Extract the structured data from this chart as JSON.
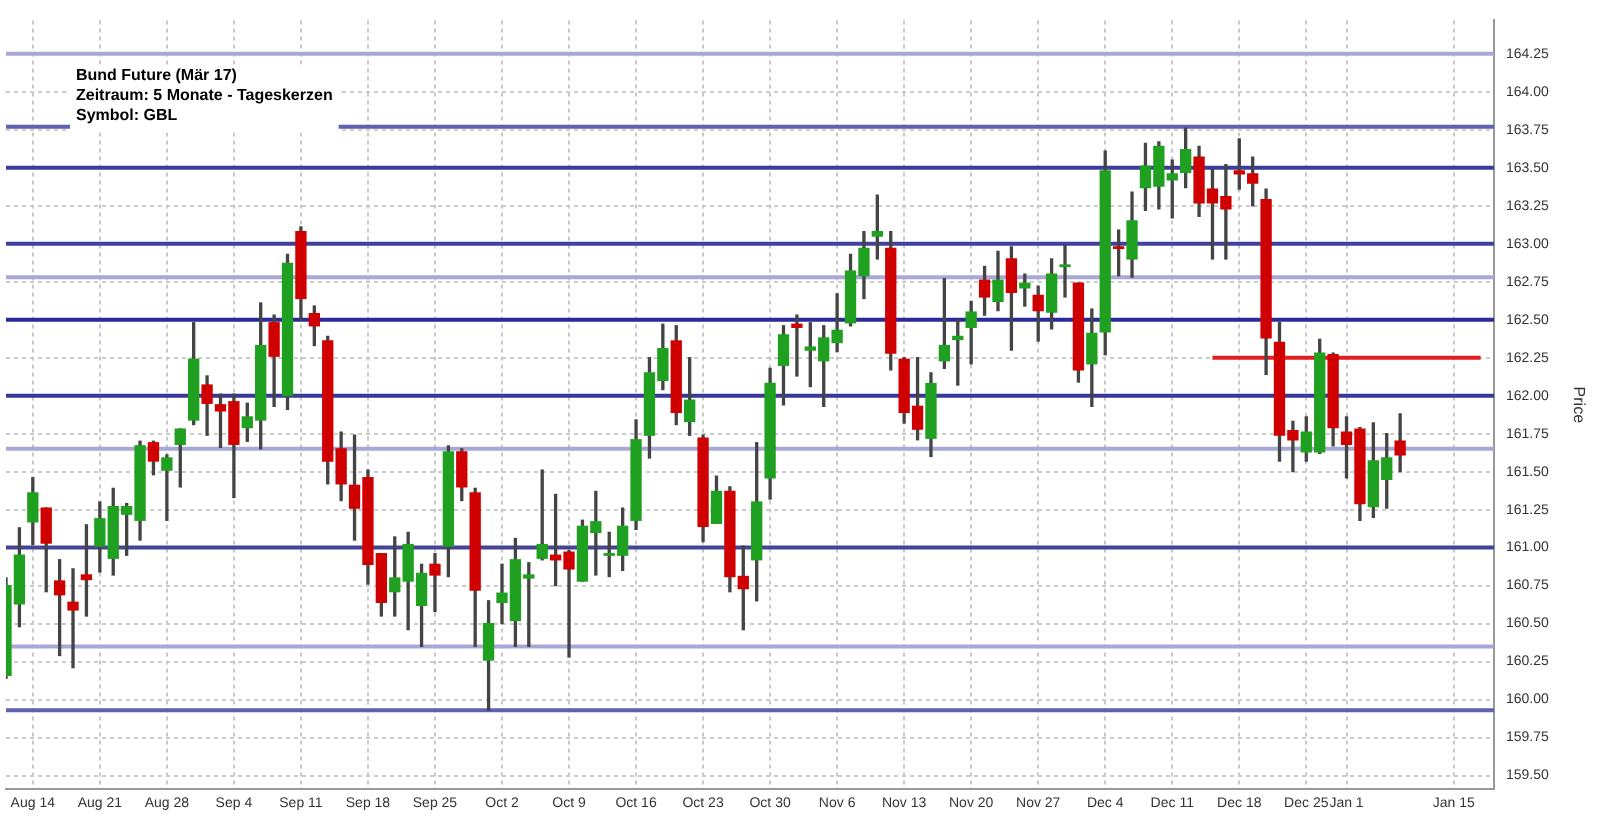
{
  "chart_data": {
    "type": "candlestick",
    "title": "Bund Future (Mär 17)",
    "subtitle": "Zeitraum: 5 Monate - Tageskerzen",
    "annotations": [
      "Symbol: GBL"
    ],
    "ylabel": "Price",
    "categories": [
      null,
      null,
      "Aug 14",
      null,
      null,
      null,
      null,
      "Aug 21",
      null,
      null,
      null,
      null,
      "Aug 28",
      null,
      null,
      null,
      null,
      "Sep 4",
      null,
      null,
      null,
      null,
      "Sep 11",
      null,
      null,
      null,
      null,
      "Sep 18",
      null,
      null,
      null,
      null,
      "Sep 25",
      null,
      null,
      null,
      null,
      "Oct 2",
      null,
      null,
      null,
      null,
      "Oct 9",
      null,
      null,
      null,
      null,
      "Oct 16",
      null,
      null,
      null,
      null,
      "Oct 23",
      null,
      null,
      null,
      null,
      "Oct 30",
      null,
      null,
      null,
      null,
      "Nov 6",
      null,
      null,
      null,
      null,
      "Nov 13",
      null,
      null,
      null,
      null,
      "Nov 20",
      null,
      null,
      null,
      null,
      "Nov 27",
      null,
      null,
      null,
      null,
      "Dec 4",
      null,
      null,
      null,
      null,
      "Dec 11",
      null,
      null,
      null,
      null,
      "Dec 18",
      null,
      null,
      null,
      null,
      "Dec 25",
      null,
      null,
      "Jan 1",
      null,
      null,
      null,
      null,
      null,
      null,
      null,
      "Jan 15",
      null,
      null,
      null
    ],
    "ohlc": [
      [
        160.16,
        160.8,
        160.14,
        160.75
      ],
      [
        160.63,
        161.13,
        160.48,
        160.95
      ],
      [
        161.17,
        161.46,
        161.02,
        161.36
      ],
      [
        161.26,
        161.26,
        160.71,
        161.03
      ],
      [
        160.78,
        160.92,
        160.29,
        160.69
      ],
      [
        160.64,
        160.86,
        160.21,
        160.59
      ],
      [
        160.82,
        161.15,
        160.55,
        160.79
      ],
      [
        161.01,
        161.3,
        160.84,
        161.19
      ],
      [
        160.93,
        161.39,
        160.82,
        161.27
      ],
      [
        161.22,
        161.29,
        160.95,
        161.27
      ],
      [
        161.18,
        161.7,
        161.05,
        161.67
      ],
      [
        161.69,
        161.7,
        161.48,
        161.57
      ],
      [
        161.51,
        161.61,
        161.18,
        161.59
      ],
      [
        161.68,
        161.78,
        161.4,
        161.78
      ],
      [
        161.84,
        162.48,
        161.81,
        162.24
      ],
      [
        162.07,
        162.13,
        161.74,
        161.95
      ],
      [
        161.94,
        162.01,
        161.66,
        161.9
      ],
      [
        161.96,
        162.01,
        161.33,
        161.68
      ],
      [
        161.79,
        161.95,
        161.7,
        161.86
      ],
      [
        161.84,
        162.61,
        161.65,
        162.33
      ],
      [
        162.48,
        162.53,
        161.93,
        162.26
      ],
      [
        162.0,
        162.93,
        161.91,
        162.87
      ],
      [
        163.08,
        163.11,
        162.5,
        162.64
      ],
      [
        162.54,
        162.59,
        162.33,
        162.46
      ],
      [
        162.36,
        162.39,
        161.42,
        161.57
      ],
      [
        161.65,
        161.76,
        161.31,
        161.42
      ],
      [
        161.41,
        161.74,
        161.05,
        161.26
      ],
      [
        161.46,
        161.51,
        160.76,
        160.89
      ],
      [
        160.96,
        160.96,
        160.55,
        160.64
      ],
      [
        160.71,
        161.07,
        160.55,
        160.8
      ],
      [
        160.78,
        161.1,
        160.46,
        161.02
      ],
      [
        160.62,
        160.89,
        160.35,
        160.83
      ],
      [
        160.89,
        160.96,
        160.58,
        160.82
      ],
      [
        161.01,
        161.67,
        160.81,
        161.63
      ],
      [
        161.63,
        161.65,
        161.31,
        161.4
      ],
      [
        161.36,
        161.39,
        160.35,
        160.72
      ],
      [
        160.26,
        160.65,
        159.93,
        160.5
      ],
      [
        160.64,
        160.89,
        160.5,
        160.7
      ],
      [
        160.52,
        161.06,
        160.35,
        160.92
      ],
      [
        160.8,
        160.9,
        160.35,
        160.82
      ],
      [
        160.93,
        161.51,
        160.92,
        161.02
      ],
      [
        160.95,
        161.35,
        160.75,
        160.92
      ],
      [
        160.97,
        160.98,
        160.28,
        160.86
      ],
      [
        160.78,
        161.18,
        160.78,
        161.14
      ],
      [
        161.1,
        161.37,
        160.82,
        161.17
      ],
      [
        160.95,
        161.1,
        160.81,
        160.96
      ],
      [
        160.95,
        161.26,
        160.85,
        161.14
      ],
      [
        161.18,
        161.84,
        161.12,
        161.71
      ],
      [
        161.74,
        162.25,
        161.59,
        162.15
      ],
      [
        162.1,
        162.47,
        162.04,
        162.31
      ],
      [
        162.36,
        162.46,
        161.81,
        161.89
      ],
      [
        161.83,
        162.25,
        161.74,
        161.97
      ],
      [
        161.72,
        161.74,
        161.04,
        161.14
      ],
      [
        161.16,
        161.47,
        161.16,
        161.37
      ],
      [
        161.37,
        161.4,
        160.71,
        160.81
      ],
      [
        160.81,
        161.01,
        160.46,
        160.73
      ],
      [
        160.92,
        161.69,
        160.65,
        161.3
      ],
      [
        161.46,
        162.18,
        161.32,
        162.08
      ],
      [
        162.2,
        162.46,
        161.94,
        162.4
      ],
      [
        162.47,
        162.53,
        162.13,
        162.45
      ],
      [
        162.3,
        162.48,
        162.06,
        162.32
      ],
      [
        162.23,
        162.46,
        161.93,
        162.38
      ],
      [
        162.35,
        162.67,
        162.29,
        162.43
      ],
      [
        162.48,
        162.93,
        162.46,
        162.82
      ],
      [
        162.79,
        163.08,
        162.64,
        162.97
      ],
      [
        163.05,
        163.32,
        162.9,
        163.08
      ],
      [
        162.97,
        163.08,
        162.17,
        162.28
      ],
      [
        162.24,
        162.25,
        161.82,
        161.89
      ],
      [
        161.93,
        162.25,
        161.71,
        161.78
      ],
      [
        161.72,
        162.15,
        161.6,
        162.08
      ],
      [
        162.23,
        162.77,
        162.18,
        162.33
      ],
      [
        162.37,
        162.5,
        162.07,
        162.39
      ],
      [
        162.45,
        162.62,
        162.21,
        162.55
      ],
      [
        162.76,
        162.85,
        162.53,
        162.65
      ],
      [
        162.62,
        162.95,
        162.56,
        162.76
      ],
      [
        162.9,
        162.98,
        162.3,
        162.68
      ],
      [
        162.71,
        162.8,
        162.59,
        162.74
      ],
      [
        162.66,
        162.72,
        162.36,
        162.56
      ],
      [
        162.55,
        162.9,
        162.44,
        162.8
      ],
      [
        162.85,
        162.99,
        162.65,
        162.86
      ],
      [
        162.74,
        162.74,
        162.09,
        162.17
      ],
      [
        162.21,
        162.57,
        161.93,
        162.41
      ],
      [
        162.42,
        163.61,
        162.27,
        163.48
      ],
      [
        162.98,
        163.09,
        162.79,
        162.97
      ],
      [
        162.9,
        163.34,
        162.78,
        163.15
      ],
      [
        163.37,
        163.66,
        163.22,
        163.51
      ],
      [
        163.38,
        163.67,
        163.23,
        163.64
      ],
      [
        163.42,
        163.55,
        163.17,
        163.46
      ],
      [
        163.47,
        163.76,
        163.37,
        163.62
      ],
      [
        163.57,
        163.64,
        163.18,
        163.27
      ],
      [
        163.36,
        163.49,
        162.9,
        163.27
      ],
      [
        163.31,
        163.52,
        162.9,
        163.23
      ],
      [
        163.48,
        163.69,
        163.36,
        163.46
      ],
      [
        163.46,
        163.57,
        163.25,
        163.4
      ],
      [
        163.29,
        163.36,
        162.14,
        162.38
      ],
      [
        162.35,
        162.48,
        161.57,
        161.74
      ],
      [
        161.77,
        161.83,
        161.5,
        161.71
      ],
      [
        161.63,
        161.86,
        161.57,
        161.76
      ],
      [
        161.63,
        162.37,
        161.62,
        162.28
      ],
      [
        162.27,
        162.28,
        161.67,
        161.79
      ],
      [
        161.76,
        161.86,
        161.46,
        161.68
      ],
      [
        161.78,
        161.79,
        161.18,
        161.29
      ],
      [
        161.27,
        161.82,
        161.2,
        161.57
      ],
      [
        161.45,
        161.75,
        161.26,
        161.59
      ],
      [
        161.7,
        161.88,
        161.5,
        161.61
      ],
      null,
      null,
      null,
      null,
      null,
      null,
      null
    ],
    "colors": [
      "#20a020",
      "#20a020",
      "#20a020",
      "#d00000",
      "#d00000",
      "#d00000",
      "#d00000",
      "#20a020",
      "#20a020",
      "#20a020",
      "#20a020",
      "#d00000",
      "#20a020",
      "#20a020",
      "#20a020",
      "#d00000",
      "#d00000",
      "#d00000",
      "#20a020",
      "#20a020",
      "#d00000",
      "#20a020",
      "#d00000",
      "#d00000",
      "#d00000",
      "#d00000",
      "#d00000",
      "#d00000",
      "#d00000",
      "#20a020",
      "#20a020",
      "#20a020",
      "#d00000",
      "#20a020",
      "#d00000",
      "#d00000",
      "#20a020",
      "#20a020",
      "#20a020",
      "#20a020",
      "#20a020",
      "#d00000",
      "#d00000",
      "#20a020",
      "#20a020",
      "#20a020",
      "#20a020",
      "#20a020",
      "#20a020",
      "#20a020",
      "#d00000",
      "#20a020",
      "#d00000",
      "#20a020",
      "#d00000",
      "#d00000",
      "#20a020",
      "#20a020",
      "#20a020",
      "#d00000",
      "#20a020",
      "#20a020",
      "#20a020",
      "#20a020",
      "#20a020",
      "#20a020",
      "#d00000",
      "#d00000",
      "#d00000",
      "#20a020",
      "#20a020",
      "#20a020",
      "#20a020",
      "#d00000",
      "#20a020",
      "#d00000",
      "#20a020",
      "#d00000",
      "#20a020",
      "#20a020",
      "#d00000",
      "#20a020",
      "#20a020",
      "#d00000",
      "#20a020",
      "#20a020",
      "#20a020",
      "#20a020",
      "#20a020",
      "#d00000",
      "#d00000",
      "#d00000",
      "#d00000",
      "#d00000",
      "#d00000",
      "#d00000",
      "#d00000",
      "#20a020",
      "#20a020",
      "#d00000",
      "#d00000",
      "#d00000",
      "#20a020",
      "#20a020",
      "#d00000",
      null,
      null,
      null,
      null,
      null,
      null,
      null
    ],
    "series": [
      {
        "type": "line",
        "color": "#e02020",
        "values": [
          null,
          null,
          null,
          null,
          null,
          null,
          null,
          null,
          null,
          null,
          null,
          null,
          null,
          null,
          null,
          null,
          null,
          null,
          null,
          null,
          null,
          null,
          null,
          null,
          null,
          null,
          null,
          null,
          null,
          null,
          null,
          null,
          null,
          null,
          null,
          null,
          null,
          null,
          null,
          null,
          null,
          null,
          null,
          null,
          null,
          null,
          null,
          null,
          null,
          null,
          null,
          null,
          null,
          null,
          null,
          null,
          null,
          null,
          null,
          null,
          null,
          null,
          null,
          null,
          null,
          null,
          null,
          null,
          null,
          null,
          null,
          null,
          null,
          null,
          null,
          null,
          null,
          null,
          null,
          null,
          null,
          null,
          null,
          null,
          null,
          null,
          null,
          null,
          null,
          null,
          162.25,
          162.25,
          162.25,
          162.25,
          162.25,
          162.25,
          162.25,
          162.25,
          162.25,
          162.25,
          162.25,
          162.25,
          162.25,
          162.25,
          162.25,
          162.25,
          162.25,
          162.25,
          162.25,
          162.25,
          162.25,
          null
        ]
      }
    ],
    "ref_lines": [
      {
        "axis": "y",
        "value": 164.25,
        "color": "#a8a8d8"
      },
      {
        "axis": "y",
        "value": 163.77,
        "color": "#6060b0"
      },
      {
        "axis": "y",
        "value": 163.5,
        "color": "#3c3c9c"
      },
      {
        "axis": "y",
        "value": 163.0,
        "color": "#40409e"
      },
      {
        "axis": "y",
        "value": 162.78,
        "color": "#a8a8d8"
      },
      {
        "axis": "y",
        "value": 162.5,
        "color": "#2a2a9a"
      },
      {
        "axis": "y",
        "value": 162.0,
        "color": "#383898"
      },
      {
        "axis": "y",
        "value": 161.65,
        "color": "#a8a8d8"
      },
      {
        "axis": "y",
        "value": 161.0,
        "color": "#444496"
      },
      {
        "axis": "y",
        "value": 160.35,
        "color": "#a8a8d8"
      },
      {
        "axis": "y",
        "value": 159.93,
        "color": "#6060b0"
      }
    ],
    "ylim": [
      159.41,
      164.47
    ],
    "yticks": [
      {
        "value": 159.5,
        "label": "159.50"
      },
      {
        "value": 159.75,
        "label": "159.75"
      },
      {
        "value": 160,
        "label": "160.00"
      },
      {
        "value": 160.25,
        "label": "160.25"
      },
      {
        "value": 160.5,
        "label": "160.50"
      },
      {
        "value": 160.75,
        "label": "160.75"
      },
      {
        "value": 161,
        "label": "161.00"
      },
      {
        "value": 161.25,
        "label": "161.25"
      },
      {
        "value": 161.5,
        "label": "161.50"
      },
      {
        "value": 161.75,
        "label": "161.75"
      },
      {
        "value": 162,
        "label": "162.00"
      },
      {
        "value": 162.25,
        "label": "162.25"
      },
      {
        "value": 162.5,
        "label": "162.50"
      },
      {
        "value": 162.75,
        "label": "162.75"
      },
      {
        "value": 163,
        "label": "163.00"
      },
      {
        "value": 163.25,
        "label": "163.25"
      },
      {
        "value": 163.5,
        "label": "163.50"
      },
      {
        "value": 163.75,
        "label": "163.75"
      },
      {
        "value": 164,
        "label": "164.00"
      },
      {
        "value": 164.25,
        "label": "164.25"
      }
    ],
    "grid": true
  }
}
